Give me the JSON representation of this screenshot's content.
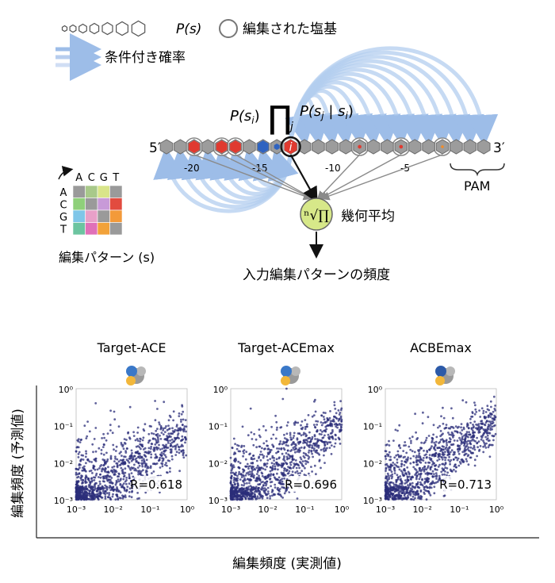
{
  "legend": {
    "prob_label": "P(s)",
    "edited_label": "編集された塩基",
    "cond_label": "条件付き確率"
  },
  "model": {
    "p_si": "P(s",
    "p_si_sub": "i",
    "p_si_close": ")",
    "prod_symbol": "∏",
    "prod_sub": "j",
    "p_cond": "P(s",
    "p_cond_sub": "j",
    "p_cond_bar": " | s",
    "p_cond_sub2": "i",
    "p_cond_close": ")",
    "node_i": "i",
    "end5": "5′",
    "end3": "3′",
    "pos_labels": [
      "-20",
      "-15",
      "-10",
      "-5"
    ],
    "pam_label": "PAM",
    "geom_symbol": "ⁿ√∏",
    "geom_label": "幾何平均",
    "output_label": "入力編集パターンの頻度"
  },
  "matrix": {
    "col_labels": [
      "A",
      "C",
      "G",
      "T"
    ],
    "row_labels": [
      "A",
      "C",
      "G",
      "T"
    ],
    "caption": "編集パターン (s)",
    "colors": [
      [
        "#9a9a9a",
        "#a8c98a",
        "#d9e58a",
        "#9a9a9a"
      ],
      [
        "#8fd07a",
        "#9a9a9a",
        "#c89ad8",
        "#e24b3f"
      ],
      [
        "#7fc6e8",
        "#e8a0c8",
        "#9a9a9a",
        "#f39a3a"
      ],
      [
        "#6cc4a0",
        "#e070b8",
        "#f2a23a",
        "#9a9a9a"
      ]
    ]
  },
  "y_axis_label": "編集頻度 (予測値)",
  "x_axis_label": "編集頻度 (実測値)",
  "chart_data": [
    {
      "type": "scatter",
      "title": "Target-ACE",
      "annotation": "R=0.618",
      "r": 0.618,
      "xscale": "log",
      "yscale": "log",
      "xlim": [
        0.001,
        1
      ],
      "ylim": [
        0.001,
        1
      ],
      "xticks": [
        "10⁻³",
        "10⁻²",
        "10⁻¹",
        "10⁰"
      ],
      "yticks": [
        "10⁰",
        "10⁻¹",
        "10⁻²",
        "10⁻³"
      ],
      "n_points": 1100,
      "point_color": "#2b2e7a",
      "icon_colors": [
        "#3a78c8",
        "#f2b73a",
        "#9a9a9a"
      ]
    },
    {
      "type": "scatter",
      "title": "Target-ACEmax",
      "annotation": "R=0.696",
      "r": 0.696,
      "xscale": "log",
      "yscale": "log",
      "xlim": [
        0.001,
        1
      ],
      "ylim": [
        0.001,
        1
      ],
      "xticks": [
        "10⁻³",
        "10⁻²",
        "10⁻¹",
        "10⁰"
      ],
      "yticks": [
        "10⁰",
        "10⁻¹",
        "10⁻²",
        "10⁻³"
      ],
      "n_points": 1100,
      "point_color": "#2b2e7a",
      "icon_colors": [
        "#3a78c8",
        "#f2b73a",
        "#9a9a9a"
      ]
    },
    {
      "type": "scatter",
      "title": "ACBEmax",
      "annotation": "R=0.713",
      "r": 0.713,
      "xscale": "log",
      "yscale": "log",
      "xlim": [
        0.001,
        1
      ],
      "ylim": [
        0.001,
        1
      ],
      "xticks": [
        "10⁻³",
        "10⁻²",
        "10⁻¹",
        "10⁰"
      ],
      "yticks": [
        "10⁰",
        "10⁻¹",
        "10⁻²",
        "10⁻³"
      ],
      "n_points": 1100,
      "point_color": "#2b2e7a",
      "icon_colors": [
        "#2c5aa8",
        "#f2b73a",
        "#9a9a9a"
      ]
    }
  ]
}
